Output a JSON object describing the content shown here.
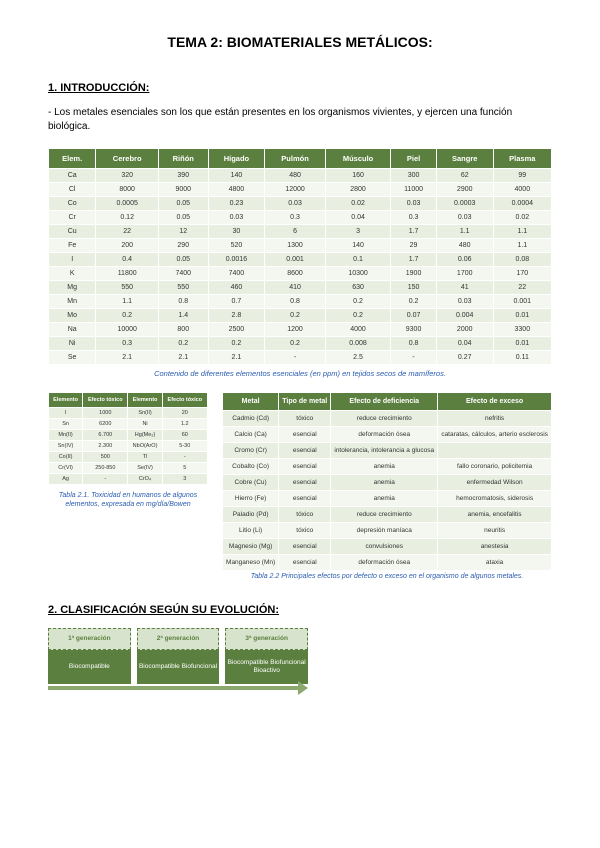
{
  "title": "TEMA 2: BIOMATERIALES METÁLICOS:",
  "section1": {
    "heading": "1. INTRODUCCIÓN:",
    "text": "- Los metales esenciales son los que están presentes en los organismos vivientes, y ejercen una función biológica."
  },
  "table1": {
    "headers": [
      "Elem.",
      "Cerebro",
      "Riñón",
      "Hígado",
      "Pulmón",
      "Músculo",
      "Piel",
      "Sangre",
      "Plasma"
    ],
    "rows": [
      [
        "Ca",
        "320",
        "390",
        "140",
        "480",
        "160",
        "300",
        "62",
        "99"
      ],
      [
        "Cl",
        "8000",
        "9000",
        "4800",
        "12000",
        "2800",
        "11000",
        "2900",
        "4000"
      ],
      [
        "Co",
        "0.0005",
        "0.05",
        "0.23",
        "0.03",
        "0.02",
        "0.03",
        "0.0003",
        "0.0004"
      ],
      [
        "Cr",
        "0.12",
        "0.05",
        "0.03",
        "0.3",
        "0.04",
        "0.3",
        "0.03",
        "0.02"
      ],
      [
        "Cu",
        "22",
        "12",
        "30",
        "6",
        "3",
        "1.7",
        "1.1",
        "1.1"
      ],
      [
        "Fe",
        "200",
        "290",
        "520",
        "1300",
        "140",
        "29",
        "480",
        "1.1"
      ],
      [
        "I",
        "0.4",
        "0.05",
        "0.0016",
        "0.001",
        "0.1",
        "1.7",
        "0.06",
        "0.08"
      ],
      [
        "K",
        "11800",
        "7400",
        "7400",
        "8600",
        "10300",
        "1900",
        "1700",
        "170"
      ],
      [
        "Mg",
        "550",
        "550",
        "460",
        "410",
        "630",
        "150",
        "41",
        "22"
      ],
      [
        "Mn",
        "1.1",
        "0.8",
        "0.7",
        "0.8",
        "0.2",
        "0.2",
        "0.03",
        "0.001"
      ],
      [
        "Mo",
        "0.2",
        "1.4",
        "2.8",
        "0.2",
        "0.2",
        "0.07",
        "0.004",
        "0.01"
      ],
      [
        "Na",
        "10000",
        "800",
        "2500",
        "1200",
        "4000",
        "9300",
        "2000",
        "3300"
      ],
      [
        "Ni",
        "0.3",
        "0.2",
        "0.2",
        "0.2",
        "0.008",
        "0.8",
        "0.04",
        "0.01"
      ],
      [
        "Se",
        "2.1",
        "2.1",
        "2.1",
        "-",
        "2.5",
        "-",
        "0.27",
        "0.11"
      ]
    ],
    "caption": "Contenido de diferentes elementos esenciales (en ppm) en tejidos secos de mamíferos."
  },
  "table_tox": {
    "headers": [
      "Elemento",
      "Efecto tóxico",
      "Elemento",
      "Efecto tóxico"
    ],
    "rows": [
      [
        "I",
        "1000",
        "Sn(II)",
        "20"
      ],
      [
        "Sn",
        "6200",
        "Ni",
        "1.2"
      ],
      [
        "Mn(II)",
        "6.700",
        "Hg(Me₂)",
        "60"
      ],
      [
        "Sn(IV)",
        "2.300",
        "NbO(ArO)",
        "5-30"
      ],
      [
        "Co(II)",
        "500",
        "Tl",
        "-"
      ],
      [
        "Cr(VI)",
        "250-850",
        "Se(IV)",
        "5"
      ],
      [
        "Ag",
        "-",
        "CrO₄",
        "3"
      ]
    ],
    "caption": "Tabla 2.1. Toxicidad en humanos de algunos elementos, expresada en mg/día/Bowen"
  },
  "table_eff": {
    "headers": [
      "Metal",
      "Tipo de metal",
      "Efecto de deficiencia",
      "Efecto de exceso"
    ],
    "rows": [
      [
        "Cadmio (Cd)",
        "tóxico",
        "reduce crecimiento",
        "nefritis"
      ],
      [
        "Calcio (Ca)",
        "esencial",
        "deformación ósea",
        "cataratas, cálculos, arterio esclerosis"
      ],
      [
        "Cromo (Cr)",
        "esencial",
        "intolerancia, intolerancia a glucosa",
        ""
      ],
      [
        "Cobalto (Co)",
        "esencial",
        "anemia",
        "fallo coronario, policitemia"
      ],
      [
        "Cobre (Cu)",
        "esencial",
        "anemia",
        "enfermedad Wilson"
      ],
      [
        "Hierro (Fe)",
        "esencial",
        "anemia",
        "hemocromatosis, siderosis"
      ],
      [
        "Paladio (Pd)",
        "tóxico",
        "reduce crecimiento",
        "anemia, encefalitis"
      ],
      [
        "Litio (Li)",
        "tóxico",
        "depresión maníaca",
        "neuritis"
      ],
      [
        "Magnesio (Mg)",
        "esencial",
        "convulsiones",
        "anestesia"
      ],
      [
        "Manganeso (Mn)",
        "esencial",
        "deformación ósea",
        "ataxia"
      ]
    ],
    "caption": "Tabla 2.2 Principales efectos por defecto o exceso en el organismo de algunos metales."
  },
  "section2": {
    "heading": "2.  CLASIFICACIÓN SEGÚN SU EVOLUCIÓN:"
  },
  "generations": [
    {
      "top": "1ª generación",
      "bot": "Biocompatible"
    },
    {
      "top": "2ª generación",
      "bot": "Biocompatible Biofuncional"
    },
    {
      "top": "3ª generación",
      "bot": "Biocompatible Biofuncional Bioactivo"
    }
  ]
}
